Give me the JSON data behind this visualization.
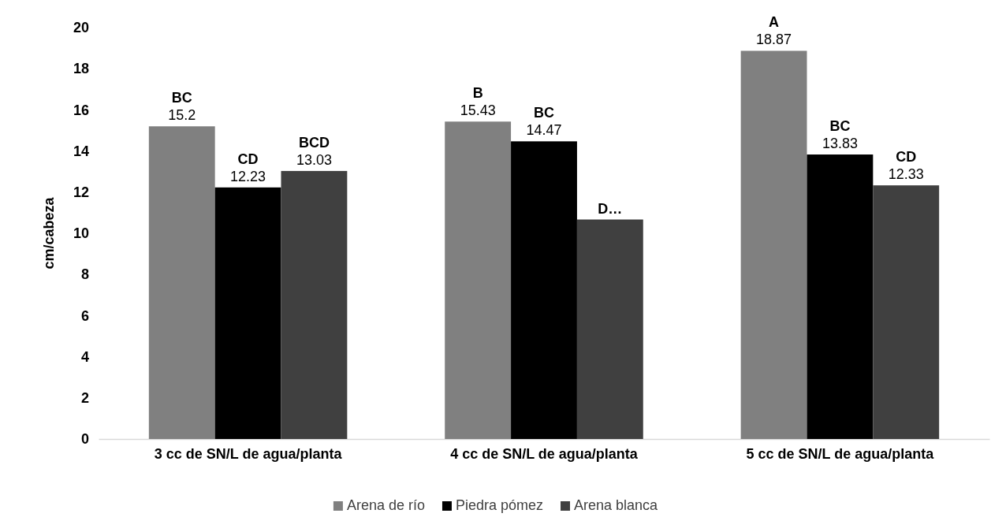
{
  "chart_data": {
    "type": "bar",
    "ylabel": "cm/cabeza",
    "categories": [
      "3 cc de SN/L de agua/planta",
      "4 cc de SN/L de agua/planta",
      "5 cc de SN/L de agua/planta"
    ],
    "series": [
      {
        "name": "Arena de río",
        "color": "#808080",
        "values": [
          15.2,
          15.43,
          18.87
        ],
        "value_labels": [
          "BC\n15.2",
          "B\n15.43",
          "A\n18.87"
        ]
      },
      {
        "name": "Piedra pómez",
        "color": "#000000",
        "values": [
          12.23,
          14.47,
          13.83
        ],
        "value_labels": [
          "CD\n12.23",
          "BC\n14.47",
          "BC\n13.83"
        ]
      },
      {
        "name": "Arena blanca",
        "color": "#404040",
        "values": [
          13.03,
          10.67,
          12.33
        ],
        "value_labels": [
          "BCD\n13.03",
          "D…",
          "CD\n12.33"
        ]
      }
    ],
    "ylim": [
      0,
      20
    ],
    "yticks": [
      0,
      2,
      4,
      6,
      8,
      10,
      12,
      14,
      16,
      18,
      20
    ],
    "grid": false,
    "legend": "bottom"
  }
}
